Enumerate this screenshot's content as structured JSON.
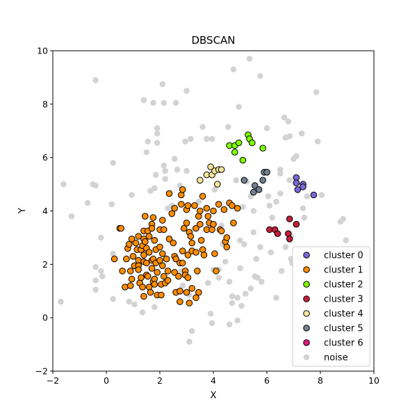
{
  "chart_data": {
    "type": "scatter",
    "title": "DBSCAN",
    "xlabel": "X",
    "ylabel": "Y",
    "xlim": [
      -2,
      10
    ],
    "ylim": [
      -2,
      10
    ],
    "xticks": [
      -2,
      0,
      2,
      4,
      6,
      8,
      10
    ],
    "yticks": [
      -2,
      0,
      2,
      4,
      6,
      8,
      10
    ],
    "grid": false,
    "legend_position": "lower-right",
    "series": [
      {
        "name": "cluster 0",
        "color": "#7b68d8",
        "points": [
          [
            7.1,
            5.25
          ],
          [
            7.1,
            5.05
          ],
          [
            7.35,
            5.0
          ],
          [
            7.35,
            4.9
          ],
          [
            7.15,
            4.8
          ],
          [
            7.75,
            4.6
          ]
        ]
      },
      {
        "name": "cluster 1",
        "color": "#ff8c00",
        "points": [
          [
            0.5,
            3.35
          ],
          [
            0.55,
            3.35
          ],
          [
            0.3,
            2.2
          ],
          [
            0.6,
            1.75
          ],
          [
            0.7,
            1.15
          ],
          [
            0.75,
            2.2
          ],
          [
            0.8,
            2.6
          ],
          [
            0.85,
            2.75
          ],
          [
            0.9,
            1.75
          ],
          [
            0.9,
            1.2
          ],
          [
            0.95,
            2.95
          ],
          [
            0.95,
            1.45
          ],
          [
            1.0,
            2.3
          ],
          [
            1.05,
            1.95
          ],
          [
            1.1,
            2.8
          ],
          [
            1.15,
            2.55
          ],
          [
            1.2,
            3.05
          ],
          [
            1.2,
            2.15
          ],
          [
            1.2,
            1.95
          ],
          [
            1.2,
            1.8
          ],
          [
            1.25,
            1.3
          ],
          [
            1.3,
            2.55
          ],
          [
            1.3,
            1.5
          ],
          [
            1.35,
            2.7
          ],
          [
            1.35,
            1.15
          ],
          [
            1.4,
            3.25
          ],
          [
            1.4,
            2.95
          ],
          [
            1.4,
            2.35
          ],
          [
            1.4,
            2.1
          ],
          [
            1.4,
            0.8
          ],
          [
            1.45,
            3.8
          ],
          [
            1.45,
            2.85
          ],
          [
            1.5,
            2.6
          ],
          [
            1.5,
            2.05
          ],
          [
            1.5,
            1.6
          ],
          [
            1.55,
            3.25
          ],
          [
            1.55,
            1.55
          ],
          [
            1.6,
            3.05
          ],
          [
            1.6,
            2.45
          ],
          [
            1.6,
            1.15
          ],
          [
            1.65,
            0.95
          ],
          [
            1.7,
            3.5
          ],
          [
            1.7,
            3.35
          ],
          [
            1.7,
            2.15
          ],
          [
            1.7,
            1.85
          ],
          [
            1.75,
            3.75
          ],
          [
            1.75,
            2.2
          ],
          [
            1.75,
            1.35
          ],
          [
            1.8,
            2.9
          ],
          [
            1.8,
            1.45
          ],
          [
            1.8,
            1.25
          ],
          [
            1.85,
            2.55
          ],
          [
            1.85,
            2.05
          ],
          [
            1.9,
            1.7
          ],
          [
            1.9,
            0.85
          ],
          [
            2.0,
            3.3
          ],
          [
            2.0,
            2.65
          ],
          [
            2.0,
            2.15
          ],
          [
            2.05,
            1.25
          ],
          [
            2.05,
            0.85
          ],
          [
            2.1,
            3.65
          ],
          [
            2.1,
            2.4
          ],
          [
            2.1,
            1.95
          ],
          [
            2.15,
            3.3
          ],
          [
            2.15,
            1.55
          ],
          [
            2.2,
            1.3
          ],
          [
            2.25,
            2.2
          ],
          [
            2.3,
            1.75
          ],
          [
            2.3,
            1.4
          ],
          [
            2.35,
            4.65
          ],
          [
            2.35,
            2.95
          ],
          [
            2.45,
            3.9
          ],
          [
            2.5,
            2.8
          ],
          [
            2.55,
            4.1
          ],
          [
            2.55,
            2.3
          ],
          [
            2.55,
            1.7
          ],
          [
            2.6,
            2.2
          ],
          [
            2.6,
            0.95
          ],
          [
            2.7,
            1.55
          ],
          [
            2.75,
            2.05
          ],
          [
            2.75,
            1.0
          ],
          [
            2.75,
            0.6
          ],
          [
            2.8,
            4.6
          ],
          [
            2.8,
            4.25
          ],
          [
            2.85,
            4.8
          ],
          [
            2.85,
            2.5
          ],
          [
            2.85,
            2.05
          ],
          [
            2.9,
            3.35
          ],
          [
            2.95,
            1.75
          ],
          [
            2.95,
            1.6
          ],
          [
            3.0,
            4.05
          ],
          [
            3.0,
            3.55
          ],
          [
            3.0,
            0.95
          ],
          [
            3.05,
            4.2
          ],
          [
            3.05,
            2.35
          ],
          [
            3.05,
            1.5
          ],
          [
            3.1,
            3.2
          ],
          [
            3.1,
            0.55
          ],
          [
            3.15,
            3.05
          ],
          [
            3.2,
            2.8
          ],
          [
            3.2,
            2.5
          ],
          [
            3.2,
            1.1
          ],
          [
            3.3,
            4.2
          ],
          [
            3.35,
            3.35
          ],
          [
            3.35,
            2.45
          ],
          [
            3.35,
            0.75
          ],
          [
            3.4,
            1.75
          ],
          [
            3.45,
            3.8
          ],
          [
            3.45,
            0.95
          ],
          [
            3.5,
            4.0
          ],
          [
            3.5,
            3.5
          ],
          [
            3.55,
            2.9
          ],
          [
            3.6,
            4.55
          ],
          [
            3.6,
            2.55
          ],
          [
            3.65,
            2.35
          ],
          [
            3.75,
            4.1
          ],
          [
            3.75,
            3.3
          ],
          [
            3.8,
            3.8
          ],
          [
            3.85,
            3.55
          ],
          [
            3.95,
            3.3
          ],
          [
            4.0,
            4.0
          ],
          [
            4.0,
            3.5
          ],
          [
            4.05,
            2.4
          ],
          [
            4.1,
            1.75
          ],
          [
            4.2,
            4.25
          ],
          [
            4.25,
            3.3
          ],
          [
            4.3,
            3.25
          ],
          [
            4.4,
            4.05
          ],
          [
            4.45,
            2.85
          ],
          [
            4.5,
            3.0
          ],
          [
            4.5,
            2.65
          ],
          [
            4.6,
            4.3
          ],
          [
            4.7,
            4.2
          ],
          [
            4.75,
            3.55
          ],
          [
            4.9,
            4.1
          ]
        ]
      },
      {
        "name": "cluster 2",
        "color": "#7fff00",
        "points": [
          [
            4.6,
            6.45
          ],
          [
            4.8,
            6.45
          ],
          [
            4.8,
            6.2
          ],
          [
            4.95,
            6.55
          ],
          [
            5.1,
            5.9
          ],
          [
            5.3,
            6.85
          ],
          [
            5.35,
            6.7
          ],
          [
            5.45,
            6.55
          ],
          [
            5.85,
            6.35
          ]
        ]
      },
      {
        "name": "cluster 3",
        "color": "#c41e3a",
        "points": [
          [
            6.1,
            3.3
          ],
          [
            6.3,
            3.3
          ],
          [
            6.4,
            3.15
          ],
          [
            6.8,
            3.15
          ],
          [
            6.85,
            3.7
          ],
          [
            6.85,
            2.95
          ],
          [
            7.1,
            3.5
          ]
        ]
      },
      {
        "name": "cluster 4",
        "color": "#f3e69a",
        "points": [
          [
            3.5,
            5.15
          ],
          [
            3.75,
            5.35
          ],
          [
            3.9,
            5.65
          ],
          [
            3.95,
            5.35
          ],
          [
            4.05,
            5.5
          ],
          [
            4.15,
            5.0
          ],
          [
            4.2,
            5.55
          ],
          [
            4.3,
            5.55
          ]
        ]
      },
      {
        "name": "cluster 5",
        "color": "#708090",
        "points": [
          [
            5.15,
            5.15
          ],
          [
            5.5,
            4.7
          ],
          [
            5.55,
            4.95
          ],
          [
            5.7,
            4.8
          ],
          [
            5.85,
            5.15
          ],
          [
            5.9,
            5.45
          ],
          [
            6.0,
            5.45
          ]
        ]
      },
      {
        "name": "cluster 6",
        "color": "#e0197e",
        "points": []
      },
      {
        "name": "noise",
        "color": "#d3d3d3",
        "edge": "none",
        "points": [
          [
            -1.7,
            0.6
          ],
          [
            -1.6,
            5.0
          ],
          [
            -1.3,
            3.8
          ],
          [
            -0.7,
            4.3
          ],
          [
            -0.5,
            5.0
          ],
          [
            -0.4,
            4.95
          ],
          [
            -0.4,
            1.4
          ],
          [
            -0.4,
            1.05
          ],
          [
            -0.4,
            1.9
          ],
          [
            -0.2,
            1.75
          ],
          [
            -0.15,
            1.55
          ],
          [
            -0.4,
            8.9
          ],
          [
            -0.2,
            3.0
          ],
          [
            0.2,
            4.25
          ],
          [
            0.25,
            2.4
          ],
          [
            0.25,
            0.7
          ],
          [
            0.25,
            5.8
          ],
          [
            0.85,
            0.6
          ],
          [
            0.95,
            4.6
          ],
          [
            1.05,
            0.5
          ],
          [
            1.35,
            0.2
          ],
          [
            1.4,
            8.15
          ],
          [
            1.5,
            6.2
          ],
          [
            1.55,
            6.6
          ],
          [
            1.65,
            4.75
          ],
          [
            1.75,
            8.05
          ],
          [
            1.8,
            0.4
          ],
          [
            1.8,
            4.85
          ],
          [
            1.85,
            5.35
          ],
          [
            1.9,
            7.1
          ],
          [
            1.9,
            6.9
          ],
          [
            1.9,
            6.55
          ],
          [
            2.1,
            8.75
          ],
          [
            2.15,
            8.05
          ],
          [
            2.15,
            5.7
          ],
          [
            2.2,
            5.5
          ],
          [
            2.2,
            5.2
          ],
          [
            2.3,
            4.1
          ],
          [
            2.45,
            4.2
          ],
          [
            2.6,
            8.05
          ],
          [
            2.65,
            5.55
          ],
          [
            2.75,
            4.95
          ],
          [
            2.8,
            1.75
          ],
          [
            2.85,
            1.2
          ],
          [
            2.95,
            6.6
          ],
          [
            3.0,
            8.5
          ],
          [
            3.0,
            5.5
          ],
          [
            3.1,
            0.85
          ],
          [
            3.1,
            -0.9
          ],
          [
            3.15,
            6.7
          ],
          [
            3.2,
            -0.5
          ],
          [
            3.3,
            3.35
          ],
          [
            3.45,
            4.35
          ],
          [
            3.6,
            7.15
          ],
          [
            3.75,
            6.7
          ],
          [
            3.8,
            1.3
          ],
          [
            3.9,
            0.15
          ],
          [
            3.95,
            -0.2
          ],
          [
            4.05,
            4.8
          ],
          [
            4.2,
            1.8
          ],
          [
            4.2,
            1.5
          ],
          [
            4.3,
            3.45
          ],
          [
            4.35,
            2.75
          ],
          [
            4.45,
            2.1
          ],
          [
            4.55,
            7.15
          ],
          [
            4.6,
            1.35
          ],
          [
            4.6,
            -0.25
          ],
          [
            4.7,
            0.55
          ],
          [
            4.75,
            9.3
          ],
          [
            4.85,
            5.15
          ],
          [
            4.9,
            -0.1
          ],
          [
            4.95,
            7.9
          ],
          [
            5.0,
            2.9
          ],
          [
            5.0,
            1.85
          ],
          [
            5.1,
            4.15
          ],
          [
            5.15,
            2.75
          ],
          [
            5.2,
            0.9
          ],
          [
            5.25,
            5.1
          ],
          [
            5.35,
            9.7
          ],
          [
            5.4,
            4.55
          ],
          [
            5.5,
            4.0
          ],
          [
            5.5,
            3.2
          ],
          [
            5.55,
            1.55
          ],
          [
            5.6,
            2.2
          ],
          [
            5.65,
            1.5
          ],
          [
            5.75,
            9.05
          ],
          [
            5.75,
            2.65
          ],
          [
            5.8,
            1.35
          ],
          [
            6.0,
            7.1
          ],
          [
            6.05,
            4.55
          ],
          [
            6.1,
            4.2
          ],
          [
            6.15,
            2.45
          ],
          [
            6.2,
            3.75
          ],
          [
            6.35,
            4.35
          ],
          [
            6.35,
            0.75
          ],
          [
            6.5,
            5.55
          ],
          [
            6.5,
            5.4
          ],
          [
            6.5,
            4.65
          ],
          [
            6.55,
            1.75
          ],
          [
            6.65,
            7.5
          ],
          [
            6.7,
            6.75
          ],
          [
            6.8,
            7.35
          ],
          [
            6.85,
            6.8
          ],
          [
            6.85,
            5.15
          ],
          [
            6.9,
            3.05
          ],
          [
            6.9,
            2.2
          ],
          [
            6.95,
            2.05
          ],
          [
            7.0,
            5.95
          ],
          [
            7.1,
            6.05
          ],
          [
            7.2,
            2.25
          ],
          [
            7.3,
            6.9
          ],
          [
            7.35,
            4.1
          ],
          [
            7.4,
            3.75
          ],
          [
            7.5,
            4.55
          ],
          [
            7.85,
            8.45
          ],
          [
            7.9,
            6.6
          ],
          [
            8.05,
            4.6
          ],
          [
            8.75,
            3.6
          ],
          [
            8.85,
            3.7
          ],
          [
            8.95,
            2.9
          ],
          [
            6.7,
            2.65
          ],
          [
            5.05,
            0.45
          ],
          [
            4.9,
            0.75
          ],
          [
            4.0,
            1.8
          ],
          [
            2.55,
            5.95
          ],
          [
            5.4,
            1.1
          ],
          [
            3.95,
            6.7
          ],
          [
            4.7,
            0.8
          ]
        ]
      }
    ]
  }
}
